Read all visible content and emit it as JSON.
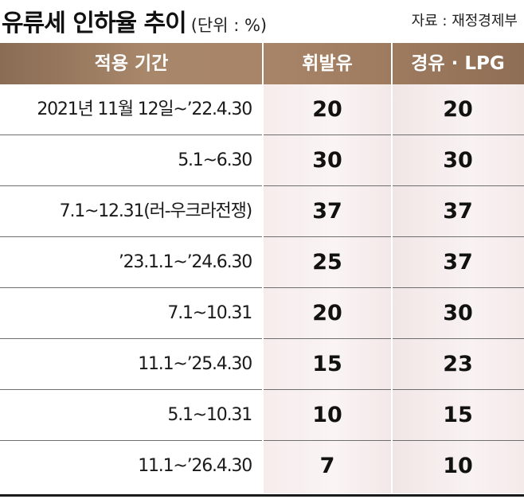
{
  "title": "유류세 인하율 추이",
  "unit": "(단위 : %)",
  "source": "자료 : 재정경제부",
  "headers": {
    "period": "적용 기간",
    "gasoline": "휘발유",
    "diesel_lpg": "경유 · LPG"
  },
  "rows": [
    {
      "period": "2021년 11월 12일~’22.4.30",
      "gasoline": "20",
      "diesel_lpg": "20"
    },
    {
      "period": "5.1~6.30",
      "gasoline": "30",
      "diesel_lpg": "30"
    },
    {
      "period": "7.1~12.31(러-우크라전쟁)",
      "gasoline": "37",
      "diesel_lpg": "37"
    },
    {
      "period": "’23.1.1~’24.6.30",
      "gasoline": "25",
      "diesel_lpg": "37"
    },
    {
      "period": "7.1~10.31",
      "gasoline": "20",
      "diesel_lpg": "30"
    },
    {
      "period": "11.1~’25.4.30",
      "gasoline": "15",
      "diesel_lpg": "23"
    },
    {
      "period": "5.1~10.31",
      "gasoline": "10",
      "diesel_lpg": "15"
    },
    {
      "period": "11.1~’26.4.30",
      "gasoline": "7",
      "diesel_lpg": "10"
    }
  ],
  "colors": {
    "header_bg": "#a8876a",
    "value_col_bg": "#f6ecec",
    "rule": "#6e6e6e"
  }
}
